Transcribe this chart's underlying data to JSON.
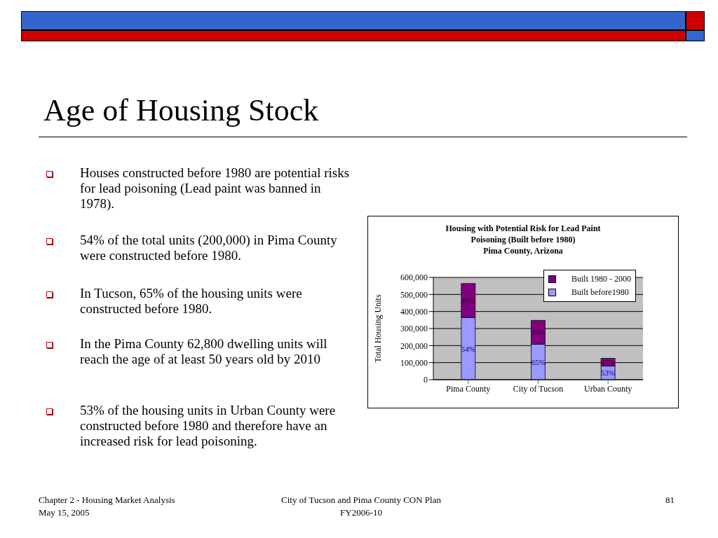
{
  "chart_data": {
    "type": "bar",
    "stacked": true,
    "title": "Age of Housing Stock",
    "subtitle": "Housing with Potential Risk for Lead Paint\nPoisoning (Built before 1980)\nPima County, Arizona",
    "ylabel": "Total Housing Units",
    "categories": [
      "Pima County",
      "City of Tucson",
      "Urban County"
    ],
    "series": [
      {
        "name": "Built before1980",
        "color": "#9999ff",
        "values": [
          365000,
          208000,
          80000
        ]
      },
      {
        "name": "Built 1980 - 2000",
        "color": "#800080",
        "values": [
          199000,
          140000,
          45000
        ]
      }
    ],
    "ylim": [
      0,
      600000
    ],
    "yticks": [
      {
        "value": 0,
        "label": "0"
      },
      {
        "value": 100000,
        "label": "100,000"
      },
      {
        "value": 200000,
        "label": "200,000"
      },
      {
        "value": 300000,
        "label": "300,000"
      },
      {
        "value": 400000,
        "label": "400,000"
      },
      {
        "value": 500000,
        "label": "500,000"
      },
      {
        "value": 600000,
        "label": "600,000"
      }
    ],
    "grid": "y",
    "legend": "top right",
    "annotations": [
      "Houses constructed before 1980 are potential risks for lead poisoning (Lead paint was banned in 1978).",
      "54% of the total units (200,000) in Pima County were constructed before 1980.",
      "In Tucson, 65% of the housing units were constructed before 1980.",
      "In the Pima County 62,800 dwelling units will reach the age of at least 50 years old by 2010",
      "53% of the housing units in Urban County were constructed before 1980 and therefore have an increased risk for lead poisoning.",
      "Chapter 2 - Housing Market Analysis",
      "May 15, 2005",
      "City of Tucson and Pima County CON Plan",
      "FY2006-10",
      "81",
      "54%",
      "65%",
      "53%",
      "46%",
      "35%",
      "47%"
    ]
  }
}
